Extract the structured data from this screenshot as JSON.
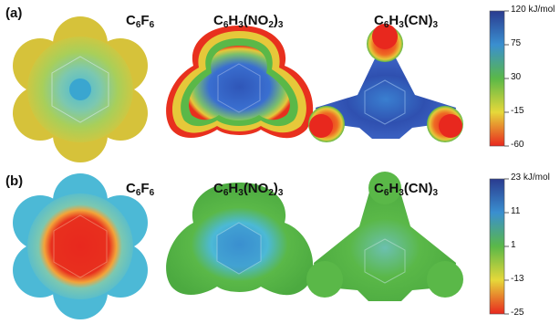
{
  "panels": [
    {
      "tag": "(a)",
      "molecules": [
        {
          "parts": [
            "C",
            "6",
            "F",
            "6"
          ]
        },
        {
          "parts": [
            "C",
            "6",
            "H",
            "3",
            "(NO",
            "2",
            ")",
            "3"
          ]
        },
        {
          "parts": [
            "C",
            "6",
            "H",
            "3",
            "(CN)",
            "3"
          ]
        }
      ],
      "colorbar": {
        "max_label": "120 kJ/mol",
        "ticks": [
          "75",
          "30",
          "-15",
          "-60"
        ]
      }
    },
    {
      "tag": "(b)",
      "molecules": [
        {
          "parts": [
            "C",
            "6",
            "F",
            "6"
          ]
        },
        {
          "parts": [
            "C",
            "6",
            "H",
            "3",
            "(NO",
            "2",
            ")",
            "3"
          ]
        },
        {
          "parts": [
            "C",
            "6",
            "H",
            "3",
            "(CN)",
            "3"
          ]
        }
      ],
      "colorbar": {
        "max_label": "23 kJ/mol",
        "ticks": [
          "11",
          "1",
          "-13",
          "-25"
        ]
      }
    }
  ],
  "colors": {
    "red": "#e8281e",
    "orange": "#f08a1e",
    "yellow": "#e6d83a",
    "green": "#5ab848",
    "cyan": "#4cb9d6",
    "blue": "#3a5fbf",
    "navy": "#2a3b8f"
  }
}
